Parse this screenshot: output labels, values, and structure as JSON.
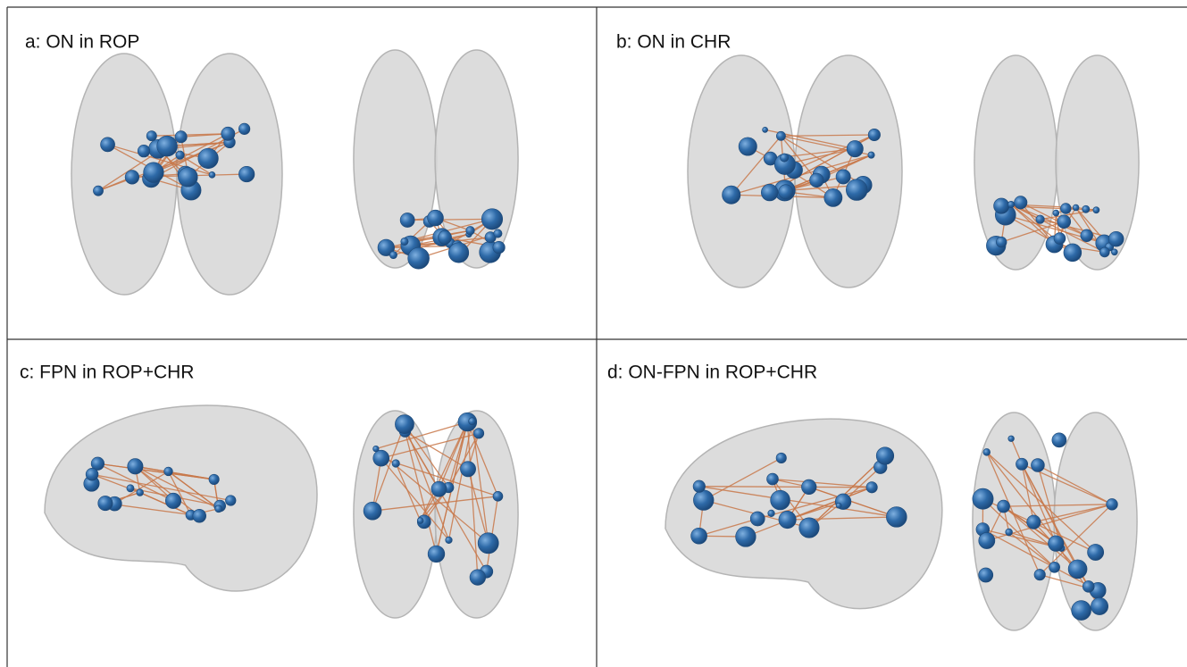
{
  "panels": [
    {
      "label": "a: ON in ROP"
    },
    {
      "label": "b: ON in CHR"
    },
    {
      "label": "c: FPN in ROP+CHR"
    },
    {
      "label": "d: ON-FPN in ROP+CHR"
    }
  ]
}
